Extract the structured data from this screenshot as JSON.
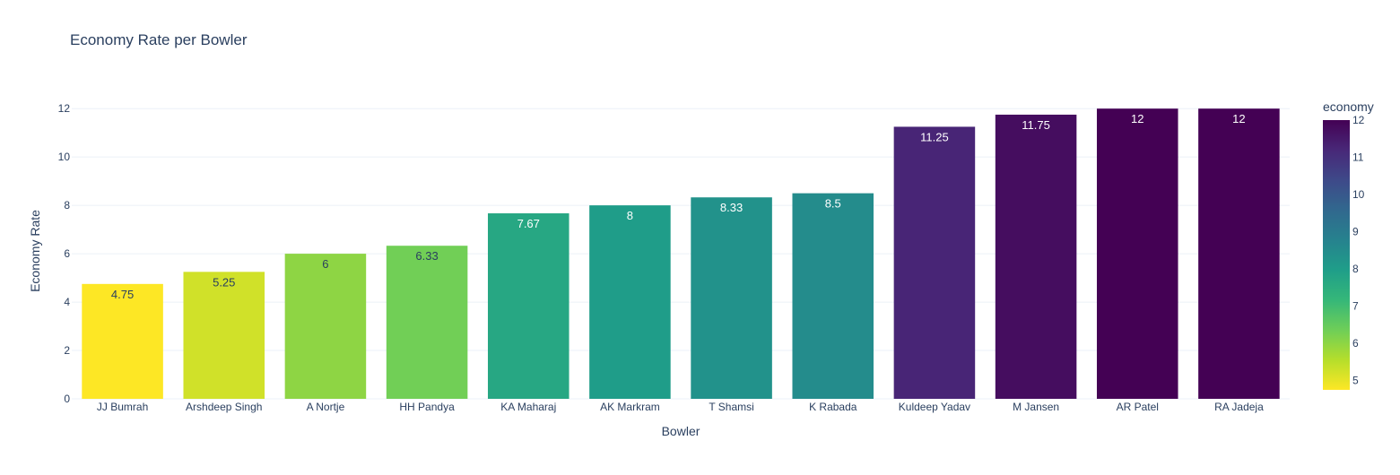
{
  "chart_data": {
    "type": "bar",
    "title": "Economy Rate per Bowler",
    "xlabel": "Bowler",
    "ylabel": "Economy Rate",
    "categories": [
      "JJ Bumrah",
      "Arshdeep Singh",
      "A Nortje",
      "HH Pandya",
      "KA Maharaj",
      "AK Markram",
      "T Shamsi",
      "K Rabada",
      "Kuldeep Yadav",
      "M Jansen",
      "AR Patel",
      "RA Jadeja"
    ],
    "values": [
      4.75,
      5.25,
      6,
      6.33,
      7.67,
      8,
      8.33,
      8.5,
      11.25,
      11.75,
      12,
      12
    ],
    "value_labels": [
      "4.75",
      "5.25",
      "6",
      "6.33",
      "7.67",
      "8",
      "8.33",
      "8.5",
      "11.25",
      "11.75",
      "12",
      "12"
    ],
    "ylim": [
      0,
      12.6
    ],
    "yticks": [
      0,
      2,
      4,
      6,
      8,
      10,
      12
    ],
    "grid": true,
    "colorscale": {
      "name": "Viridis (reversed)",
      "title": "economy",
      "range": [
        4.75,
        12
      ],
      "ticks": [
        5,
        6,
        7,
        8,
        9,
        10,
        11,
        12
      ],
      "stops": [
        "#fde725",
        "#b5de2b",
        "#6ece58",
        "#35b779",
        "#1f9e89",
        "#26828e",
        "#31688e",
        "#3e4989",
        "#482878",
        "#440154"
      ]
    },
    "colors": {
      "title": "#2a3f5f",
      "axis_text": "#2a3f5f",
      "grid": "#ebf0f8",
      "label_dark": "#2a3f5f",
      "label_light": "#ffffff"
    }
  }
}
